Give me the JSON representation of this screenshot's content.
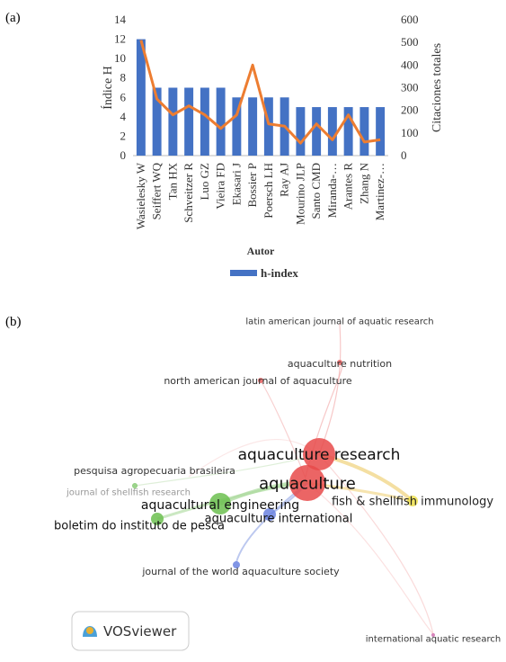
{
  "panels": [
    "(a)",
    "(b)"
  ],
  "chart_data": {
    "type": "bar-line",
    "x_label": "Autor",
    "y_label": "Índice H",
    "y2_label": "Citaciones totales",
    "categories": [
      "Wasielesky W",
      "Seiffert WQ",
      "Tan HX",
      "Schveitzer R",
      "Luo GZ",
      "Vieira FD",
      "Ekasari J",
      "Bossier P",
      "Poersch LH",
      "Ray AJ",
      "Mourino JLP",
      "Santo CMD",
      "Miranda-…",
      "Arantes R",
      "Zhang N",
      "Martinez-…"
    ],
    "series": [
      {
        "name": "h-index",
        "type": "bar",
        "color": "#4472c4",
        "values": [
          12,
          7,
          7,
          7,
          7,
          7,
          6,
          6,
          6,
          6,
          5,
          5,
          5,
          5,
          5,
          5
        ]
      },
      {
        "type": "line",
        "axis": "y2",
        "color": "#ed7d31",
        "values": [
          510,
          250,
          180,
          220,
          180,
          120,
          180,
          400,
          140,
          130,
          55,
          140,
          70,
          180,
          60,
          70
        ]
      }
    ],
    "ylim": [
      0,
      14
    ],
    "yticks": [
      0,
      2,
      4,
      6,
      8,
      10,
      12,
      14
    ],
    "y2lim": [
      0,
      600
    ],
    "y2ticks": [
      0,
      100,
      200,
      300,
      400,
      500,
      600
    ],
    "legend": "bottom"
  },
  "network": {
    "nodes": [
      {
        "label": "latin american journal of aquatic research"
      },
      {
        "label": "aquaculture nutrition"
      },
      {
        "label": "north american journal of aquaculture"
      },
      {
        "label": "aquaculture research"
      },
      {
        "label": "aquaculture"
      },
      {
        "label": "pesquisa agropecuaria brasileira"
      },
      {
        "label": "journal of shellfish research"
      },
      {
        "label": "aquacultural engineering"
      },
      {
        "label": "fish & shellfish immunology"
      },
      {
        "label": "aquaculture international"
      },
      {
        "label": "boletim do instituto de pesca"
      },
      {
        "label": "journal of the world aquaculture society"
      },
      {
        "label": "international aquatic research"
      }
    ],
    "logo": "VOSviewer"
  }
}
